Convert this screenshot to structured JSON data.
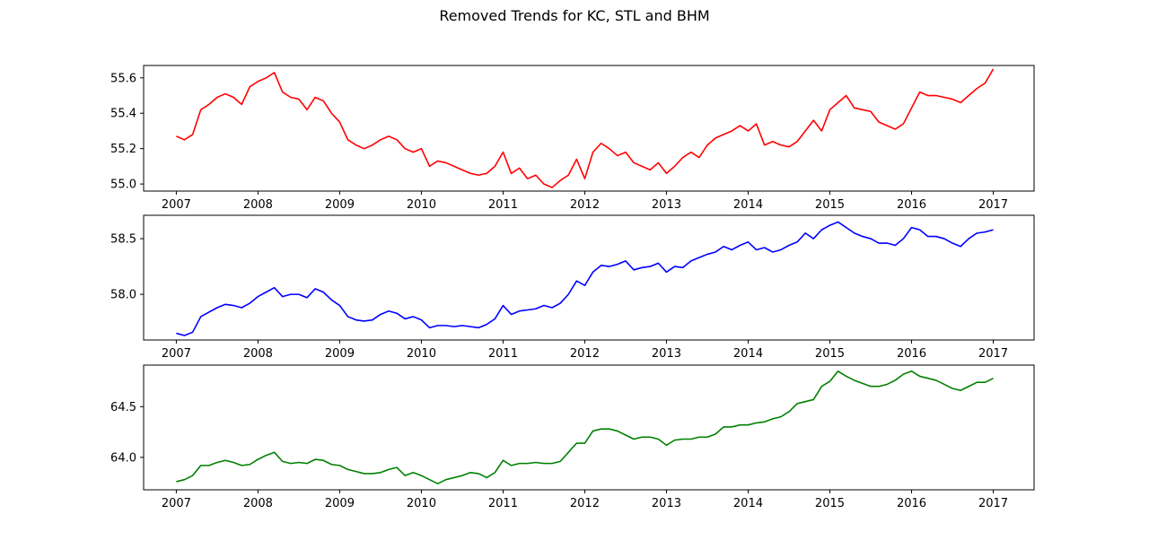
{
  "title": "Removed Trends for KC, STL and BHM",
  "chart_data": [
    {
      "type": "line",
      "series": [
        {
          "color": "#ff0000"
        }
      ],
      "x_ticks": [
        "2007",
        "2008",
        "2009",
        "2010",
        "2011",
        "2012",
        "2013",
        "2014",
        "2015",
        "2016",
        "2017"
      ],
      "y_ticks": [
        55.0,
        55.2,
        55.4,
        55.6
      ],
      "y_tick_labels": [
        "55.0",
        "55.2",
        "55.4",
        "55.6"
      ],
      "xlim": [
        2006.6,
        2017.5
      ],
      "ylim": [
        54.96,
        55.67
      ],
      "x": [
        2007.0,
        2007.1,
        2007.2,
        2007.3,
        2007.4,
        2007.5,
        2007.6,
        2007.7,
        2007.8,
        2007.9,
        2008.0,
        2008.1,
        2008.2,
        2008.3,
        2008.4,
        2008.5,
        2008.6,
        2008.7,
        2008.8,
        2008.9,
        2009.0,
        2009.1,
        2009.2,
        2009.3,
        2009.4,
        2009.5,
        2009.6,
        2009.7,
        2009.8,
        2009.9,
        2010.0,
        2010.1,
        2010.2,
        2010.3,
        2010.4,
        2010.5,
        2010.6,
        2010.7,
        2010.8,
        2010.9,
        2011.0,
        2011.1,
        2011.2,
        2011.3,
        2011.4,
        2011.5,
        2011.6,
        2011.7,
        2011.8,
        2011.9,
        2012.0,
        2012.1,
        2012.2,
        2012.3,
        2012.4,
        2012.5,
        2012.6,
        2012.7,
        2012.8,
        2012.9,
        2013.0,
        2013.1,
        2013.2,
        2013.3,
        2013.4,
        2013.5,
        2013.6,
        2013.7,
        2013.8,
        2013.9,
        2014.0,
        2014.1,
        2014.2,
        2014.3,
        2014.4,
        2014.5,
        2014.6,
        2014.7,
        2014.8,
        2014.9,
        2015.0,
        2015.1,
        2015.2,
        2015.3,
        2015.4,
        2015.5,
        2015.6,
        2015.7,
        2015.8,
        2015.9,
        2016.0,
        2016.1,
        2016.2,
        2016.3,
        2016.4,
        2016.5,
        2016.6,
        2016.7,
        2016.8,
        2016.9,
        2017.0
      ],
      "y": [
        55.27,
        55.25,
        55.28,
        55.42,
        55.45,
        55.49,
        55.51,
        55.49,
        55.45,
        55.55,
        55.58,
        55.6,
        55.63,
        55.52,
        55.49,
        55.48,
        55.42,
        55.49,
        55.47,
        55.4,
        55.35,
        55.25,
        55.22,
        55.2,
        55.22,
        55.25,
        55.27,
        55.25,
        55.2,
        55.18,
        55.2,
        55.1,
        55.13,
        55.12,
        55.1,
        55.08,
        55.06,
        55.05,
        55.06,
        55.1,
        55.18,
        55.06,
        55.09,
        55.03,
        55.05,
        55.0,
        54.98,
        55.02,
        55.05,
        55.14,
        55.03,
        55.18,
        55.23,
        55.2,
        55.16,
        55.18,
        55.12,
        55.1,
        55.08,
        55.12,
        55.06,
        55.1,
        55.15,
        55.18,
        55.15,
        55.22,
        55.26,
        55.28,
        55.3,
        55.33,
        55.3,
        55.34,
        55.22,
        55.24,
        55.22,
        55.21,
        55.24,
        55.3,
        55.36,
        55.3,
        55.42,
        55.46,
        55.5,
        55.43,
        55.42,
        55.41,
        55.35,
        55.33,
        55.31,
        55.34,
        55.43,
        55.52,
        55.5,
        55.5,
        55.49,
        55.48,
        55.46,
        55.5,
        55.54,
        55.57,
        55.65
      ]
    },
    {
      "type": "line",
      "series": [
        {
          "color": "#0000ff"
        }
      ],
      "x_ticks": [
        "2007",
        "2008",
        "2009",
        "2010",
        "2011",
        "2012",
        "2013",
        "2014",
        "2015",
        "2016",
        "2017"
      ],
      "y_ticks": [
        58.0,
        58.5
      ],
      "y_tick_labels": [
        "58.0",
        "58.5"
      ],
      "xlim": [
        2006.6,
        2017.5
      ],
      "ylim": [
        57.59,
        58.71
      ],
      "x": [
        2007.0,
        2007.1,
        2007.2,
        2007.3,
        2007.4,
        2007.5,
        2007.6,
        2007.7,
        2007.8,
        2007.9,
        2008.0,
        2008.1,
        2008.2,
        2008.3,
        2008.4,
        2008.5,
        2008.6,
        2008.7,
        2008.8,
        2008.9,
        2009.0,
        2009.1,
        2009.2,
        2009.3,
        2009.4,
        2009.5,
        2009.6,
        2009.7,
        2009.8,
        2009.9,
        2010.0,
        2010.1,
        2010.2,
        2010.3,
        2010.4,
        2010.5,
        2010.6,
        2010.7,
        2010.8,
        2010.9,
        2011.0,
        2011.1,
        2011.2,
        2011.3,
        2011.4,
        2011.5,
        2011.6,
        2011.7,
        2011.8,
        2011.9,
        2012.0,
        2012.1,
        2012.2,
        2012.3,
        2012.4,
        2012.5,
        2012.6,
        2012.7,
        2012.8,
        2012.9,
        2013.0,
        2013.1,
        2013.2,
        2013.3,
        2013.4,
        2013.5,
        2013.6,
        2013.7,
        2013.8,
        2013.9,
        2014.0,
        2014.1,
        2014.2,
        2014.3,
        2014.4,
        2014.5,
        2014.6,
        2014.7,
        2014.8,
        2014.9,
        2015.0,
        2015.1,
        2015.2,
        2015.3,
        2015.4,
        2015.5,
        2015.6,
        2015.7,
        2015.8,
        2015.9,
        2016.0,
        2016.1,
        2016.2,
        2016.3,
        2016.4,
        2016.5,
        2016.6,
        2016.7,
        2016.8,
        2016.9,
        2017.0
      ],
      "y": [
        57.65,
        57.63,
        57.66,
        57.8,
        57.84,
        57.88,
        57.91,
        57.9,
        57.88,
        57.92,
        57.98,
        58.02,
        58.06,
        57.98,
        58.0,
        58.0,
        57.97,
        58.05,
        58.02,
        57.95,
        57.9,
        57.8,
        57.77,
        57.76,
        57.77,
        57.82,
        57.85,
        57.83,
        57.78,
        57.8,
        57.77,
        57.7,
        57.72,
        57.72,
        57.71,
        57.72,
        57.71,
        57.7,
        57.73,
        57.78,
        57.9,
        57.82,
        57.85,
        57.86,
        57.87,
        57.9,
        57.88,
        57.92,
        58.0,
        58.12,
        58.08,
        58.2,
        58.26,
        58.25,
        58.27,
        58.3,
        58.22,
        58.24,
        58.25,
        58.28,
        58.2,
        58.25,
        58.24,
        58.3,
        58.33,
        58.36,
        58.38,
        58.43,
        58.4,
        58.44,
        58.47,
        58.4,
        58.42,
        58.38,
        58.4,
        58.44,
        58.47,
        58.55,
        58.5,
        58.58,
        58.62,
        58.65,
        58.6,
        58.55,
        58.52,
        58.5,
        58.46,
        58.46,
        58.44,
        58.5,
        58.6,
        58.58,
        58.52,
        58.52,
        58.5,
        58.46,
        58.43,
        58.5,
        58.55,
        58.56,
        58.58
      ]
    },
    {
      "type": "line",
      "series": [
        {
          "color": "#008000"
        }
      ],
      "x_ticks": [
        "2007",
        "2008",
        "2009",
        "2010",
        "2011",
        "2012",
        "2013",
        "2014",
        "2015",
        "2016",
        "2017"
      ],
      "y_ticks": [
        64.0,
        64.5
      ],
      "y_tick_labels": [
        "64.0",
        "64.5"
      ],
      "xlim": [
        2006.6,
        2017.5
      ],
      "ylim": [
        63.68,
        64.91
      ],
      "x": [
        2007.0,
        2007.1,
        2007.2,
        2007.3,
        2007.4,
        2007.5,
        2007.6,
        2007.7,
        2007.8,
        2007.9,
        2008.0,
        2008.1,
        2008.2,
        2008.3,
        2008.4,
        2008.5,
        2008.6,
        2008.7,
        2008.8,
        2008.9,
        2009.0,
        2009.1,
        2009.2,
        2009.3,
        2009.4,
        2009.5,
        2009.6,
        2009.7,
        2009.8,
        2009.9,
        2010.0,
        2010.1,
        2010.2,
        2010.3,
        2010.4,
        2010.5,
        2010.6,
        2010.7,
        2010.8,
        2010.9,
        2011.0,
        2011.1,
        2011.2,
        2011.3,
        2011.4,
        2011.5,
        2011.6,
        2011.7,
        2011.8,
        2011.9,
        2012.0,
        2012.1,
        2012.2,
        2012.3,
        2012.4,
        2012.5,
        2012.6,
        2012.7,
        2012.8,
        2012.9,
        2013.0,
        2013.1,
        2013.2,
        2013.3,
        2013.4,
        2013.5,
        2013.6,
        2013.7,
        2013.8,
        2013.9,
        2014.0,
        2014.1,
        2014.2,
        2014.3,
        2014.4,
        2014.5,
        2014.6,
        2014.7,
        2014.8,
        2014.9,
        2015.0,
        2015.1,
        2015.2,
        2015.3,
        2015.4,
        2015.5,
        2015.6,
        2015.7,
        2015.8,
        2015.9,
        2016.0,
        2016.1,
        2016.2,
        2016.3,
        2016.4,
        2016.5,
        2016.6,
        2016.7,
        2016.8,
        2016.9,
        2017.0
      ],
      "y": [
        63.76,
        63.78,
        63.82,
        63.92,
        63.92,
        63.95,
        63.97,
        63.95,
        63.92,
        63.93,
        63.98,
        64.02,
        64.05,
        63.96,
        63.94,
        63.95,
        63.94,
        63.98,
        63.97,
        63.93,
        63.92,
        63.88,
        63.86,
        63.84,
        63.84,
        63.85,
        63.88,
        63.9,
        63.82,
        63.85,
        63.82,
        63.78,
        63.74,
        63.78,
        63.8,
        63.82,
        63.85,
        63.84,
        63.8,
        63.85,
        63.97,
        63.92,
        63.94,
        63.94,
        63.95,
        63.94,
        63.94,
        63.96,
        64.05,
        64.14,
        64.14,
        64.26,
        64.28,
        64.28,
        64.26,
        64.22,
        64.18,
        64.2,
        64.2,
        64.18,
        64.12,
        64.17,
        64.18,
        64.18,
        64.2,
        64.2,
        64.23,
        64.3,
        64.3,
        64.32,
        64.32,
        64.34,
        64.35,
        64.38,
        64.4,
        64.45,
        64.53,
        64.55,
        64.57,
        64.7,
        64.75,
        64.85,
        64.8,
        64.76,
        64.73,
        64.7,
        64.7,
        64.72,
        64.76,
        64.82,
        64.85,
        64.8,
        64.78,
        64.76,
        64.72,
        64.68,
        64.66,
        64.7,
        64.74,
        64.74,
        64.78
      ]
    }
  ]
}
